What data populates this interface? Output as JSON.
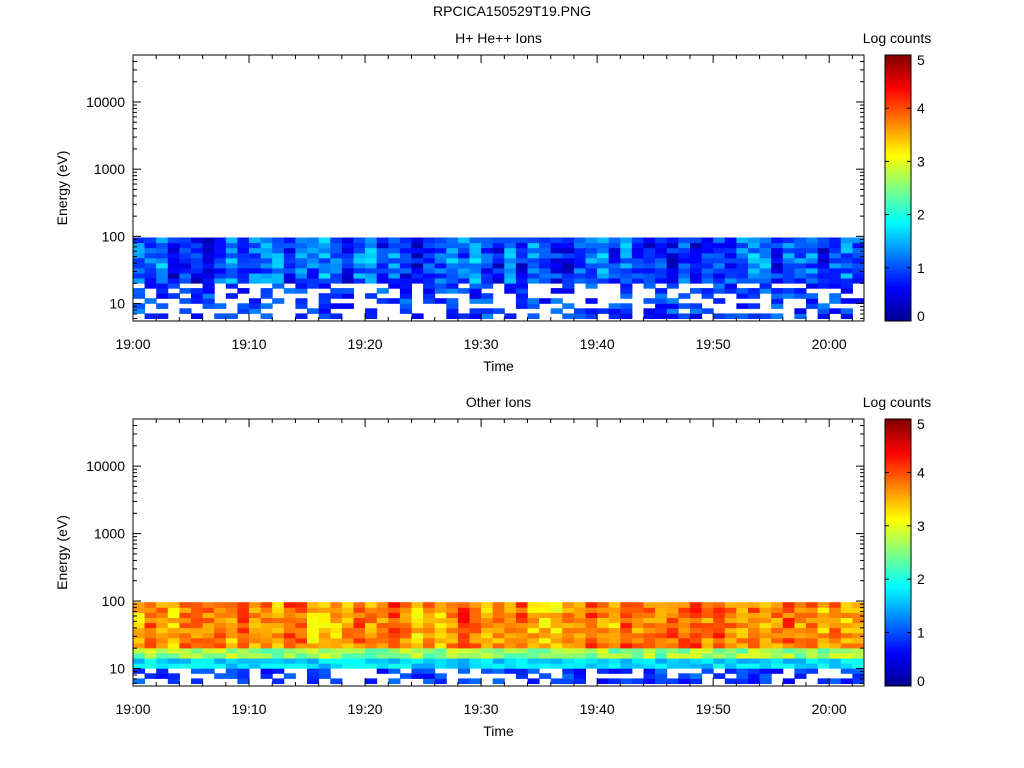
{
  "figure": {
    "filename": "RPCICA150529T19.PNG"
  },
  "colors": {
    "axis": "#000000",
    "colormap": [
      "#00008f",
      "#0000ff",
      "#0080ff",
      "#00ffff",
      "#80ff80",
      "#ffff00",
      "#ff8000",
      "#ff0000",
      "#800000"
    ]
  },
  "chart_data": [
    {
      "type": "heatmap",
      "title": "H+ He++ Ions",
      "xlabel": "Time",
      "ylabel": "Energy (eV)",
      "yscale": "log",
      "x_tick_labels": [
        "19:00",
        "19:10",
        "19:20",
        "19:30",
        "19:40",
        "19:50",
        "20:00"
      ],
      "y_tick_labels": [
        "10",
        "100",
        "1000",
        "10000"
      ],
      "xlim": [
        "19:00",
        "20:03"
      ],
      "ylim": [
        5.5,
        50000
      ],
      "energy_range_with_data": [
        6,
        96
      ],
      "value_range_log_counts": [
        0.3,
        2.5
      ],
      "typical_log_counts": 1.3,
      "colorbar": {
        "label": "Log counts",
        "range": [
          0,
          5
        ],
        "tick_labels": [
          "0",
          "1",
          "2",
          "3",
          "4",
          "5"
        ]
      }
    },
    {
      "type": "heatmap",
      "title": "Other Ions",
      "xlabel": "Time",
      "ylabel": "Energy (eV)",
      "yscale": "log",
      "x_tick_labels": [
        "19:00",
        "19:10",
        "19:20",
        "19:30",
        "19:40",
        "19:50",
        "20:00"
      ],
      "y_tick_labels": [
        "10",
        "100",
        "1000",
        "10000"
      ],
      "xlim": [
        "19:00",
        "20:03"
      ],
      "ylim": [
        5.5,
        50000
      ],
      "energy_range_with_data": [
        6,
        96
      ],
      "value_range_log_counts": [
        0.2,
        4.6
      ],
      "typical_log_counts_above_20eV": 3.8,
      "colorbar": {
        "label": "Log counts",
        "range": [
          0,
          5
        ],
        "tick_labels": [
          "0",
          "1",
          "2",
          "3",
          "4",
          "5"
        ]
      }
    }
  ]
}
